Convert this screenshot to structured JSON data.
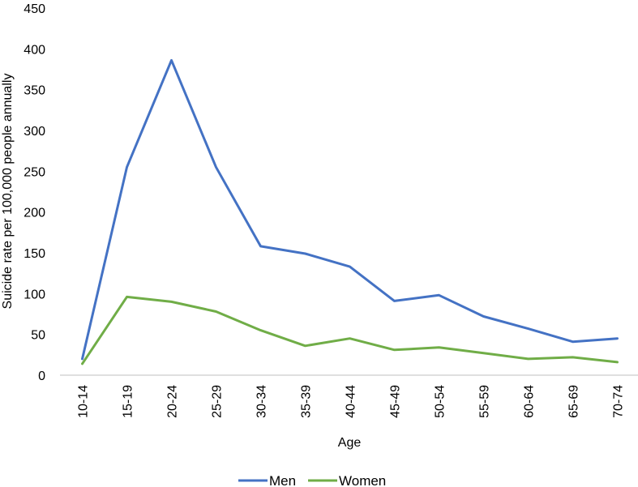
{
  "chart_data": {
    "type": "line",
    "categories": [
      "10-14",
      "15-19",
      "20-24",
      "25-29",
      "30-34",
      "35-39",
      "40-44",
      "45-49",
      "50-54",
      "55-59",
      "60-64",
      "65-69",
      "70-74"
    ],
    "series": [
      {
        "name": "Men",
        "color": "#4472C4",
        "values": [
          20,
          255,
          386,
          255,
          158,
          149,
          133,
          91,
          98,
          72,
          57,
          41,
          45
        ]
      },
      {
        "name": "Women",
        "color": "#70AD47",
        "values": [
          14,
          96,
          90,
          78,
          55,
          36,
          45,
          31,
          34,
          27,
          20,
          22,
          16
        ]
      }
    ],
    "xlabel": "Age",
    "ylabel": "Suicide rate per 100,000 people annually",
    "ylim": [
      0,
      450
    ],
    "yticks": [
      0,
      50,
      100,
      150,
      200,
      250,
      300,
      350,
      400,
      450
    ],
    "grid": false,
    "legend_position": "bottom"
  }
}
